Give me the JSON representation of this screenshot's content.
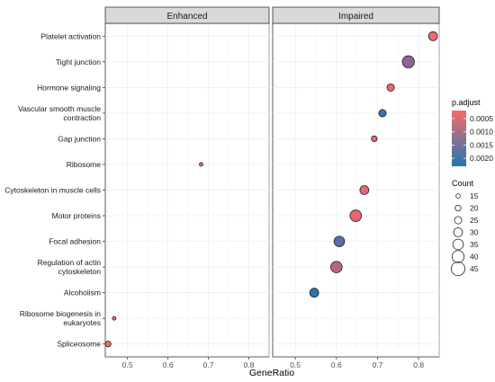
{
  "chart_data": {
    "type": "scatter",
    "xlabel": "GeneRatio",
    "xticks": [
      0.5,
      0.6,
      0.7,
      0.8
    ],
    "xlim": [
      0.445,
      0.85
    ],
    "categories": [
      "Platelet activation",
      "Tight junction",
      "Hormone signaling",
      "Vascular smooth muscle\ncontraction",
      "Gap junction",
      "Ribosome",
      "Cytoskeleton in muscle cells",
      "Motor proteins",
      "Focal adhesion",
      "Regulation of actin\ncytoskeleton",
      "Alcoholism",
      "Ribosome biogenesis in\neukaryotes",
      "Spliceosome"
    ],
    "facets": [
      "Enhanced",
      "Impaired"
    ],
    "points": [
      {
        "facet": "Impaired",
        "category": "Platelet activation",
        "x": 0.835,
        "p_adjust": 0.0003,
        "count": 30
      },
      {
        "facet": "Impaired",
        "category": "Tight junction",
        "x": 0.775,
        "p_adjust": 0.0013,
        "count": 40
      },
      {
        "facet": "Impaired",
        "category": "Hormone signaling",
        "x": 0.732,
        "p_adjust": 0.0004,
        "count": 25
      },
      {
        "facet": "Impaired",
        "category": "Vascular smooth muscle\ncontraction",
        "x": 0.712,
        "p_adjust": 0.0021,
        "count": 25
      },
      {
        "facet": "Impaired",
        "category": "Gap junction",
        "x": 0.692,
        "p_adjust": 0.0004,
        "count": 20
      },
      {
        "facet": "Enhanced",
        "category": "Ribosome",
        "x": 0.682,
        "p_adjust": 0.0003,
        "count": 13
      },
      {
        "facet": "Impaired",
        "category": "Cytoskeleton in muscle cells",
        "x": 0.668,
        "p_adjust": 0.0004,
        "count": 30
      },
      {
        "facet": "Impaired",
        "category": "Motor proteins",
        "x": 0.647,
        "p_adjust": 0.0004,
        "count": 38
      },
      {
        "facet": "Impaired",
        "category": "Focal adhesion",
        "x": 0.607,
        "p_adjust": 0.0018,
        "count": 35
      },
      {
        "facet": "Impaired",
        "category": "Regulation of actin\ncytoskeleton",
        "x": 0.6,
        "p_adjust": 0.0009,
        "count": 38
      },
      {
        "facet": "Impaired",
        "category": "Alcoholism",
        "x": 0.546,
        "p_adjust": 0.0022,
        "count": 30
      },
      {
        "facet": "Enhanced",
        "category": "Ribosome biogenesis in\neukaryotes",
        "x": 0.467,
        "p_adjust": 0.0003,
        "count": 13
      },
      {
        "facet": "Enhanced",
        "category": "Spliceosome",
        "x": 0.452,
        "p_adjust": 0.0003,
        "count": 20
      }
    ],
    "color_legend": {
      "title": "p.adjust",
      "ticks": [
        0.0005,
        0.001,
        0.0015,
        0.002
      ],
      "tick_labels": [
        "0.0005",
        "0.0010",
        "0.0015",
        "0.0020"
      ],
      "range": [
        0.0002,
        0.0023
      ],
      "low_color": "#f8696b",
      "high_color": "#1f78b4"
    },
    "size_legend": {
      "title": "Count",
      "values": [
        15,
        20,
        25,
        30,
        35,
        40,
        45
      ],
      "labels": [
        "15",
        "20",
        "25",
        "30",
        "35",
        "40",
        "45"
      ]
    },
    "grid": true,
    "legend_position": "right"
  }
}
